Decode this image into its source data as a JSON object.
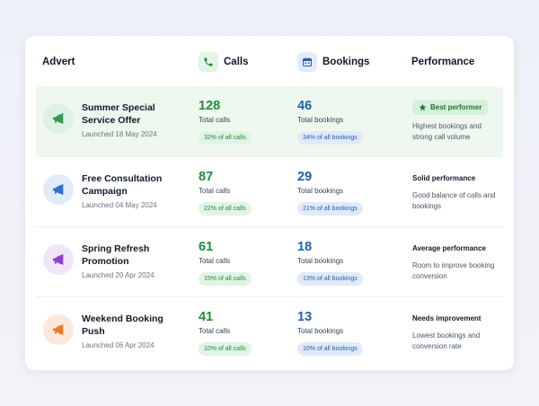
{
  "header": {
    "advert": "Advert",
    "calls": "Calls",
    "bookings": "Bookings",
    "performance": "Performance",
    "calls_icon": "phone-icon",
    "bookings_icon": "calendar-icon"
  },
  "colors": {
    "green": "#1f8a3b",
    "blue": "#1e5fb3",
    "highlight_row": "#eef8ef",
    "avatar_green": "#dff1e2",
    "avatar_blue": "#e3ebf8",
    "avatar_purple": "#efe6fa",
    "avatar_orange": "#fbe8dd"
  },
  "rows": [
    {
      "title": "Summer Special Service Offer",
      "date": "Launched 18 May 2024",
      "icon": "megaphone-icon",
      "icon_color": "#2f9e52",
      "calls": "128",
      "calls_label": "Total calls",
      "calls_share": "32% of all calls",
      "bookings": "46",
      "bookings_label": "Total bookings",
      "bookings_share": "34% of all bookings",
      "badge": "Best performer",
      "badge_icon": "star-icon",
      "performance_desc": "Highest bookings and strong call volume"
    },
    {
      "title": "Free Consultation Campaign",
      "date": "Launched 04 May 2024",
      "icon": "megaphone-icon",
      "icon_color": "#2f6fd1",
      "calls": "87",
      "calls_label": "Total calls",
      "calls_share": "22% of all calls",
      "bookings": "29",
      "bookings_label": "Total bookings",
      "bookings_share": "21% of all bookings",
      "performance_title": "Solid performance",
      "performance_desc": "Good balance of calls and bookings"
    },
    {
      "title": "Spring Refresh Promotion",
      "date": "Launched 20 Apr 2024",
      "icon": "megaphone-icon",
      "icon_color": "#8b3fd6",
      "calls": "61",
      "calls_label": "Total calls",
      "calls_share": "15% of all calls",
      "bookings": "18",
      "bookings_label": "Total bookings",
      "bookings_share": "13% of all bookings",
      "performance_title": "Average performance",
      "performance_desc": "Room to improve booking conversion"
    },
    {
      "title": "Weekend Booking Push",
      "date": "Launched 06 Apr 2024",
      "icon": "megaphone-icon",
      "icon_color": "#f07a2a",
      "calls": "41",
      "calls_label": "Total calls",
      "calls_share": "10% of all calls",
      "bookings": "13",
      "bookings_label": "Total bookings",
      "bookings_share": "10% of all bookings",
      "performance_title": "Needs improvement",
      "performance_desc": "Lowest bookings and conversion rate"
    }
  ]
}
